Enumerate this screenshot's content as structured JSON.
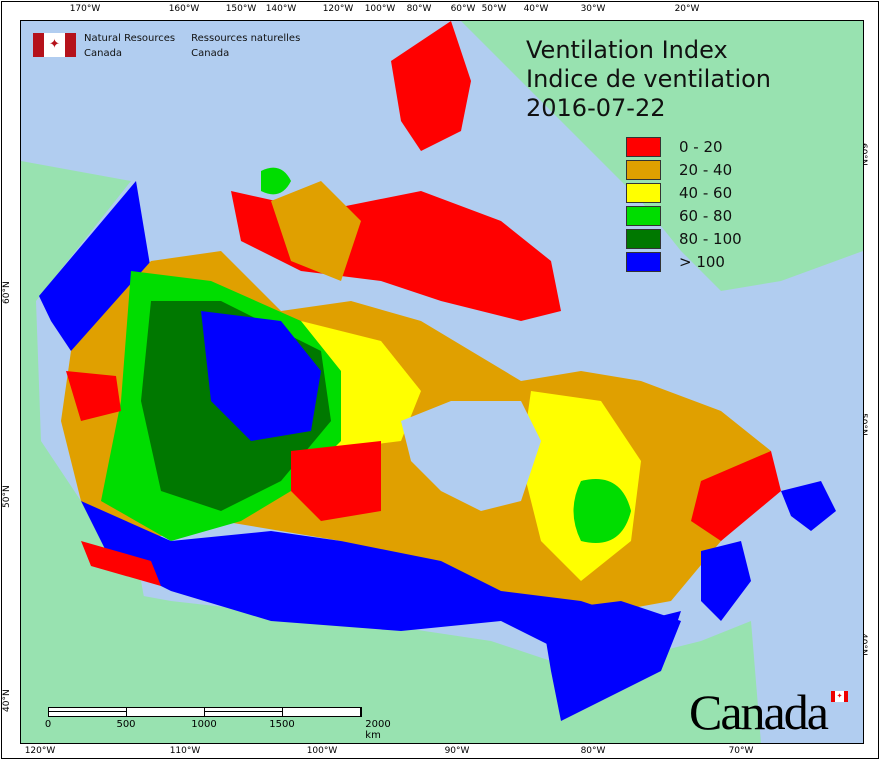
{
  "title": {
    "line1": "Ventilation Index",
    "line2": "Indice de ventilation",
    "date": "2016-07-22"
  },
  "agency": {
    "en_line1": "Natural Resources",
    "en_line2": "Canada",
    "fr_line1": "Ressources naturelles",
    "fr_line2": "Canada"
  },
  "wordmark": "Canada",
  "legend": [
    {
      "label": "0 - 20",
      "color": "#ff0000"
    },
    {
      "label": "20 - 40",
      "color": "#e0a000"
    },
    {
      "label": "40 - 60",
      "color": "#ffff00"
    },
    {
      "label": "60 - 80",
      "color": "#00dd00"
    },
    {
      "label": "80 - 100",
      "color": "#007800"
    },
    {
      "label": "> 100",
      "color": "#0000ff"
    }
  ],
  "axes": {
    "top": [
      "170°W",
      "160°W",
      "150°W",
      "140°W",
      "120°W",
      "100°W",
      "80°W",
      "60°W",
      "50°W",
      "40°W",
      "30°W",
      "20°W"
    ],
    "bottom": [
      "120°W",
      "110°W",
      "100°W",
      "90°W",
      "80°W",
      "70°W"
    ],
    "left": [
      "60°N",
      "50°N",
      "40°N"
    ],
    "right": [
      "60°N",
      "50°N",
      "40°N"
    ]
  },
  "scale": {
    "labels": [
      "0",
      "500",
      "1000",
      "1500",
      "2000 km"
    ]
  },
  "colors": {
    "ocean": "#b1cdf0",
    "land": "#98e2b0"
  }
}
